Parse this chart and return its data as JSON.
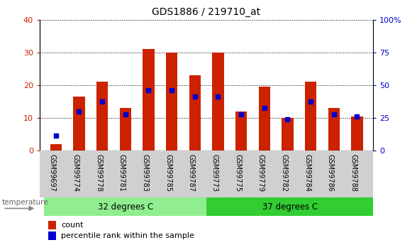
{
  "title": "GDS1886 / 219710_at",
  "categories": [
    "GSM99697",
    "GSM99774",
    "GSM99778",
    "GSM99781",
    "GSM99783",
    "GSM99785",
    "GSM99787",
    "GSM99773",
    "GSM99775",
    "GSM99779",
    "GSM99782",
    "GSM99784",
    "GSM99786",
    "GSM99788"
  ],
  "count_values": [
    2,
    16.5,
    21,
    13,
    31,
    30,
    23,
    30,
    12,
    19.5,
    10,
    21,
    13,
    10.5
  ],
  "percentile_values": [
    4.5,
    12,
    15,
    11,
    18.5,
    18.5,
    16.5,
    16.5,
    11,
    13,
    9.5,
    15,
    11,
    10.5
  ],
  "group1_label": "32 degrees C",
  "group2_label": "37 degrees C",
  "group1_count": 7,
  "group2_count": 7,
  "group1_color": "#90ee90",
  "group2_color": "#32cd32",
  "bar_color": "#cc2200",
  "percentile_color": "#0000cc",
  "ylim": [
    0,
    40
  ],
  "yticks_left": [
    0,
    10,
    20,
    30,
    40
  ],
  "yticks_right": [
    0,
    25,
    50,
    75,
    100
  ],
  "legend_count": "count",
  "legend_percentile": "percentile rank within the sample",
  "temperature_label": "temperature",
  "bg_color": "#ffffff",
  "tick_bg_color": "#d0d0d0"
}
